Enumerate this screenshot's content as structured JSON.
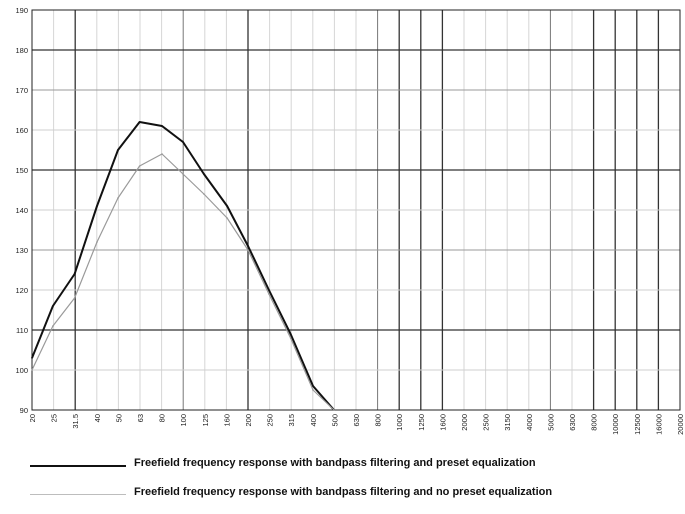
{
  "chart_data": {
    "type": "line",
    "title": "",
    "xlabel": "",
    "ylabel": "",
    "x_scale": "log",
    "grid": true,
    "x_ticks": [
      "20",
      "25",
      "31.5",
      "40",
      "50",
      "63",
      "80",
      "100",
      "125",
      "160",
      "200",
      "250",
      "315",
      "400",
      "500",
      "630",
      "800",
      "1000",
      "1250",
      "1600",
      "2000",
      "2500",
      "3150",
      "4000",
      "5000",
      "6300",
      "8000",
      "10000",
      "12500",
      "16000",
      "20000"
    ],
    "y_ticks": [
      "90",
      "100",
      "110",
      "120",
      "130",
      "140",
      "150",
      "160",
      "170",
      "180",
      "190"
    ],
    "ylim": [
      90,
      190
    ],
    "series": [
      {
        "name": "Freefield frequency response with bandpass filtering and preset equalization",
        "color": "#111111",
        "points": [
          [
            20,
            103
          ],
          [
            25,
            116
          ],
          [
            31.5,
            124
          ],
          [
            40,
            141
          ],
          [
            50,
            155
          ],
          [
            63,
            162
          ],
          [
            80,
            161
          ],
          [
            100,
            157
          ],
          [
            125,
            149
          ],
          [
            160,
            141
          ],
          [
            200,
            131
          ],
          [
            250,
            120
          ],
          [
            315,
            109
          ],
          [
            400,
            96
          ],
          [
            500,
            90
          ]
        ]
      },
      {
        "name": "Freefield frequency response with bandpass filtering and no preset equalization",
        "color": "#9a9a9a",
        "points": [
          [
            20,
            100
          ],
          [
            25,
            111
          ],
          [
            31.5,
            118
          ],
          [
            40,
            132
          ],
          [
            50,
            143
          ],
          [
            63,
            151
          ],
          [
            80,
            154
          ],
          [
            100,
            149
          ],
          [
            125,
            144
          ],
          [
            160,
            138
          ],
          [
            200,
            130
          ],
          [
            250,
            119
          ],
          [
            315,
            108
          ],
          [
            400,
            95
          ],
          [
            500,
            90
          ]
        ]
      }
    ]
  }
}
